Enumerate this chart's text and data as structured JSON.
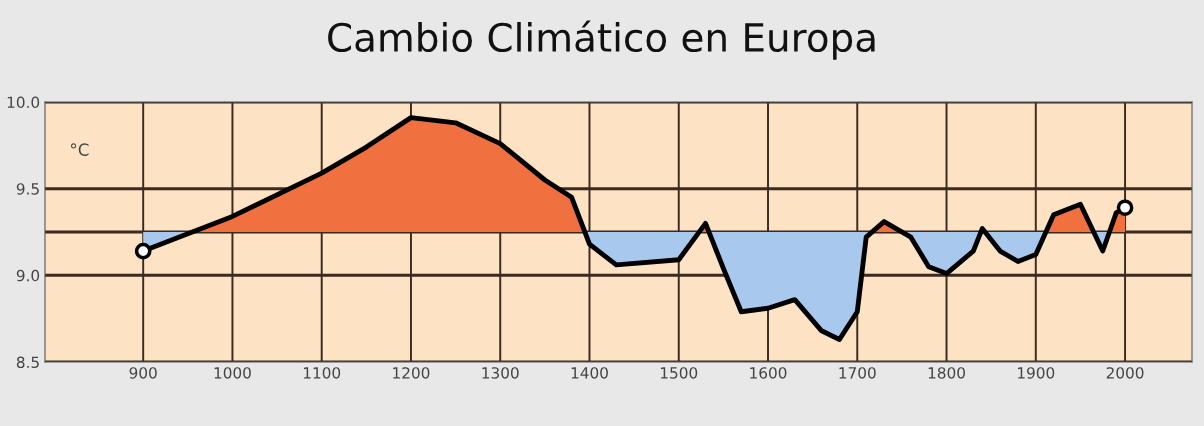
{
  "chart_data": {
    "type": "line",
    "title": "Cambio Climático en Europa",
    "ylabel": "°C",
    "x": [
      900,
      1000,
      1100,
      1150,
      1200,
      1250,
      1300,
      1350,
      1380,
      1400,
      1430,
      1500,
      1530,
      1550,
      1570,
      1600,
      1630,
      1660,
      1680,
      1700,
      1710,
      1730,
      1760,
      1780,
      1800,
      1830,
      1840,
      1860,
      1880,
      1900,
      1920,
      1950,
      1975,
      1990,
      2000
    ],
    "series": [
      {
        "color": "#000000",
        "values": [
          9.14,
          9.34,
          9.59,
          9.74,
          9.91,
          9.88,
          9.76,
          9.55,
          9.45,
          9.18,
          9.06,
          9.09,
          9.3,
          9.04,
          8.79,
          8.81,
          8.86,
          8.68,
          8.63,
          8.79,
          9.22,
          9.31,
          9.22,
          9.05,
          9.01,
          9.14,
          9.27,
          9.14,
          9.08,
          9.12,
          9.35,
          9.41,
          9.14,
          9.36,
          9.39
        ]
      },
      {
        "type": "scatter",
        "x": [
          900,
          2000
        ],
        "values": [
          9.14,
          9.39
        ],
        "color": "#ffffff",
        "marker": "circle"
      }
    ],
    "xlim": [
      790,
      2075
    ],
    "ylim": [
      8.5,
      10.0
    ],
    "xticks": [
      900,
      1000,
      1100,
      1200,
      1300,
      1400,
      1500,
      1600,
      1700,
      1800,
      1900,
      2000
    ],
    "yticks": [
      8.5,
      {
        "value": 9,
        "label": "9.0"
      },
      9.5,
      {
        "value": 10,
        "label": "10.0"
      }
    ],
    "ref_lines": [
      {
        "axis": "y",
        "value": 9.25,
        "color": "#3a2a20"
      }
    ],
    "grid": true
  }
}
